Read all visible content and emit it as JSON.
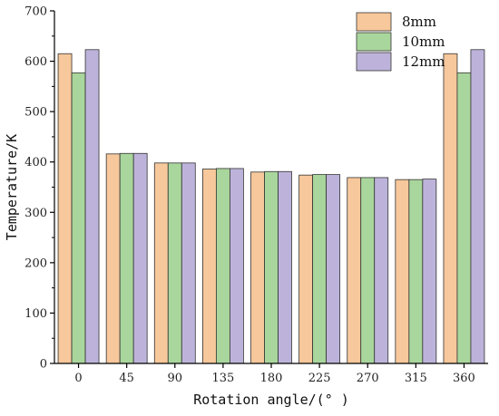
{
  "chart_data": {
    "type": "bar",
    "title": "",
    "xlabel": "Rotation angle/(° )",
    "ylabel": "Temperature/K",
    "categories": [
      "0",
      "45",
      "90",
      "135",
      "180",
      "225",
      "270",
      "315",
      "360"
    ],
    "ylim": [
      0,
      700
    ],
    "yticks": [
      "0",
      "100",
      "200",
      "300",
      "400",
      "500",
      "600",
      "700"
    ],
    "grid": false,
    "legend_position": "top-right",
    "series": [
      {
        "name": "8mm",
        "color": "#F7C89B",
        "values": [
          615,
          416,
          398,
          386,
          380,
          374,
          369,
          365,
          615
        ]
      },
      {
        "name": "10mm",
        "color": "#A9D69C",
        "values": [
          577,
          417,
          398,
          387,
          381,
          375,
          369,
          365,
          577
        ]
      },
      {
        "name": "12mm",
        "color": "#BDB3DA",
        "values": [
          623,
          417,
          398,
          387,
          381,
          375,
          369,
          366,
          623
        ]
      }
    ]
  }
}
